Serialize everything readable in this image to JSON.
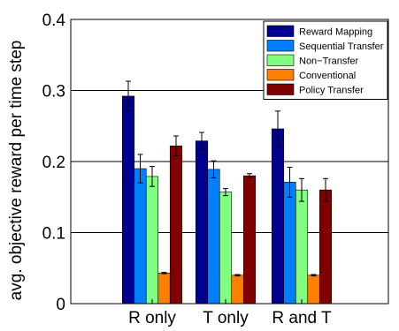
{
  "chart_data": {
    "type": "bar",
    "title": "",
    "xlabel": "",
    "ylabel": "avg. objective reward per time step",
    "ylim": [
      0,
      0.4
    ],
    "yticks": [
      "0",
      "0.1",
      "0.2",
      "0.3",
      "0.4"
    ],
    "ytick_values": [
      0,
      0.1,
      0.2,
      0.3,
      0.4
    ],
    "grid": "horizontal",
    "legend_position": "top-right",
    "categories": [
      "R only",
      "T only",
      "R and T"
    ],
    "series": [
      {
        "name": "Reward Mapping",
        "color": "#00008F",
        "values": [
          0.292,
          0.229,
          0.246
        ],
        "errors": [
          0.021,
          0.012,
          0.025
        ]
      },
      {
        "name": "Sequential Transfer",
        "color": "#0080FF",
        "values": [
          0.19,
          0.189,
          0.171
        ],
        "errors": [
          0.02,
          0.012,
          0.021
        ]
      },
      {
        "name": "Non−Transfer",
        "color": "#80FF80",
        "values": [
          0.179,
          0.157,
          0.16
        ],
        "errors": [
          0.014,
          0.005,
          0.016
        ]
      },
      {
        "name": "Conventional",
        "color": "#FF8000",
        "values": [
          0.043,
          0.04,
          0.04
        ],
        "errors": [
          0.001,
          0.001,
          0.001
        ]
      },
      {
        "name": "Policy Transfer",
        "color": "#800000",
        "values": [
          0.222,
          0.18,
          0.16
        ],
        "errors": [
          0.014,
          0.003,
          0.016
        ]
      }
    ]
  }
}
